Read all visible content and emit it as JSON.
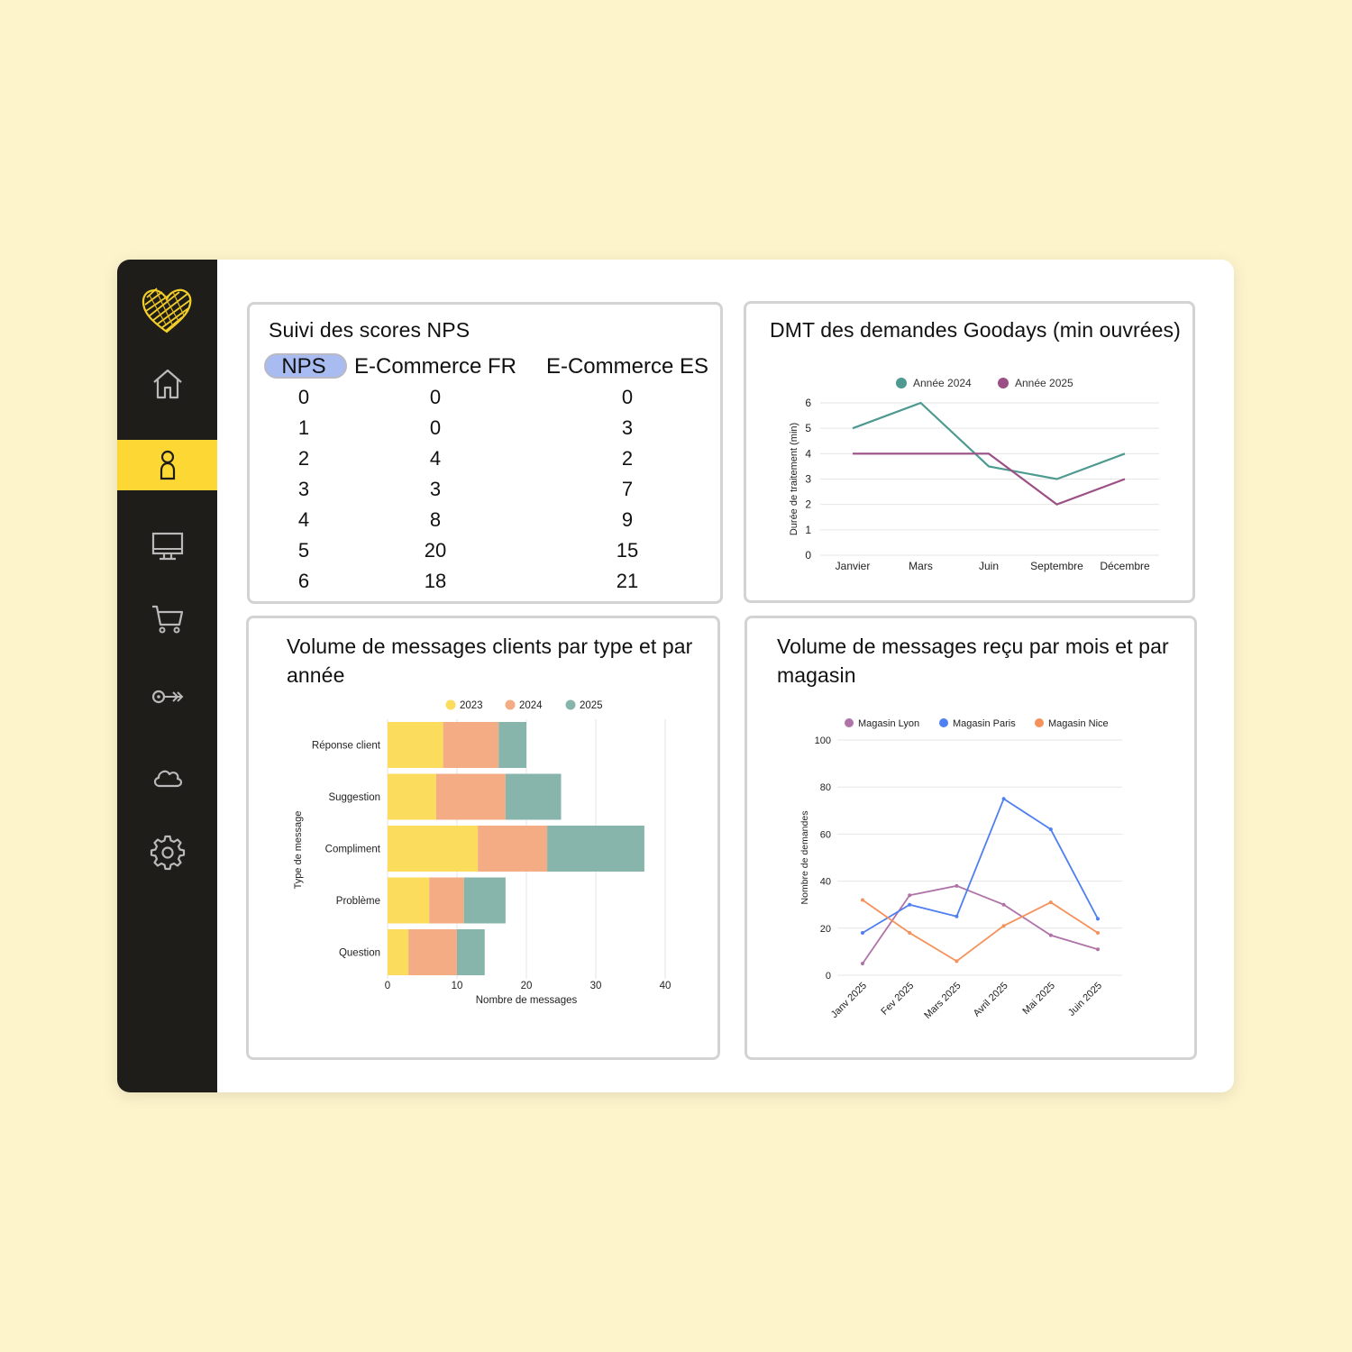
{
  "sidebar": {
    "logo": "heart-scribble-logo",
    "items": [
      {
        "icon": "home-icon",
        "active": false
      },
      {
        "icon": "user-icon",
        "active": true
      },
      {
        "icon": "monitor-icon",
        "active": false
      },
      {
        "icon": "cart-icon",
        "active": false
      },
      {
        "icon": "key-icon",
        "active": false
      },
      {
        "icon": "cloud-icon",
        "active": false
      },
      {
        "icon": "gear-icon",
        "active": false
      }
    ],
    "accent": "#fdd835",
    "background": "#1f1d1a"
  },
  "nps": {
    "title": "Suivi des scores NPS",
    "headers": [
      "NPS",
      "E-Commerce FR",
      "E-Commerce ES"
    ],
    "rows": [
      [
        "0",
        "0",
        "0"
      ],
      [
        "1",
        "0",
        "3"
      ],
      [
        "2",
        "4",
        "2"
      ],
      [
        "3",
        "3",
        "7"
      ],
      [
        "4",
        "8",
        "9"
      ],
      [
        "5",
        "20",
        "15"
      ],
      [
        "6",
        "18",
        "21"
      ]
    ]
  },
  "chart_data": [
    {
      "id": "dmt",
      "type": "line",
      "title": "DMT des demandes Goodays (min ouvrées)",
      "xlabel": "",
      "ylabel": "Durée de traitement (min)",
      "categories": [
        "Janvier",
        "Mars",
        "Juin",
        "Septembre",
        "Décembre"
      ],
      "series": [
        {
          "name": "Année 2024",
          "color": "#4e9a91",
          "values": [
            5,
            6,
            3.5,
            3,
            4
          ]
        },
        {
          "name": "Année 2025",
          "color": "#9c4f85",
          "values": [
            4,
            4,
            4,
            2,
            3
          ]
        }
      ],
      "ylim": [
        0,
        6
      ],
      "yticks": [
        0,
        1,
        2,
        3,
        4,
        5,
        6
      ],
      "grid": true,
      "legend": "top"
    },
    {
      "id": "volume-type",
      "type": "bar",
      "orientation": "horizontal",
      "stacked": true,
      "title": "Volume de messages clients par type et par année",
      "xlabel": "Nombre de messages",
      "ylabel": "Type de message",
      "categories": [
        "Réponse client",
        "Suggestion",
        "Compliment",
        "Problème",
        "Question"
      ],
      "series": [
        {
          "name": "2023",
          "color": "#fbdc5c",
          "values": [
            8,
            7,
            13,
            6,
            3
          ]
        },
        {
          "name": "2024",
          "color": "#f3ac84",
          "values": [
            8,
            10,
            10,
            5,
            7
          ]
        },
        {
          "name": "2025",
          "color": "#87b5ac",
          "values": [
            4,
            8,
            14,
            6,
            4
          ]
        }
      ],
      "xlim": [
        0,
        40
      ],
      "xticks": [
        0,
        10,
        20,
        30,
        40
      ],
      "grid": true,
      "legend": "top"
    },
    {
      "id": "volume-magasin",
      "type": "line",
      "title": "Volume de messages reçu par mois et par magasin",
      "xlabel": "",
      "ylabel": "Nombre de demandes",
      "categories": [
        "Janv 2025",
        "Fev 2025",
        "Mars 2025",
        "Avril 2025",
        "Mai 2025",
        "Juin 2025"
      ],
      "series": [
        {
          "name": "Magasin Lyon",
          "color": "#b073a8",
          "values": [
            5,
            34,
            38,
            30,
            17,
            11
          ]
        },
        {
          "name": "Magasin Paris",
          "color": "#4f7ff0",
          "values": [
            18,
            30,
            25,
            75,
            62,
            24
          ]
        },
        {
          "name": "Magasin Nice",
          "color": "#f5915a",
          "values": [
            32,
            18,
            6,
            21,
            31,
            18
          ]
        }
      ],
      "ylim": [
        0,
        100
      ],
      "yticks": [
        0,
        20,
        40,
        60,
        80,
        100
      ],
      "grid": true,
      "legend": "top"
    }
  ]
}
